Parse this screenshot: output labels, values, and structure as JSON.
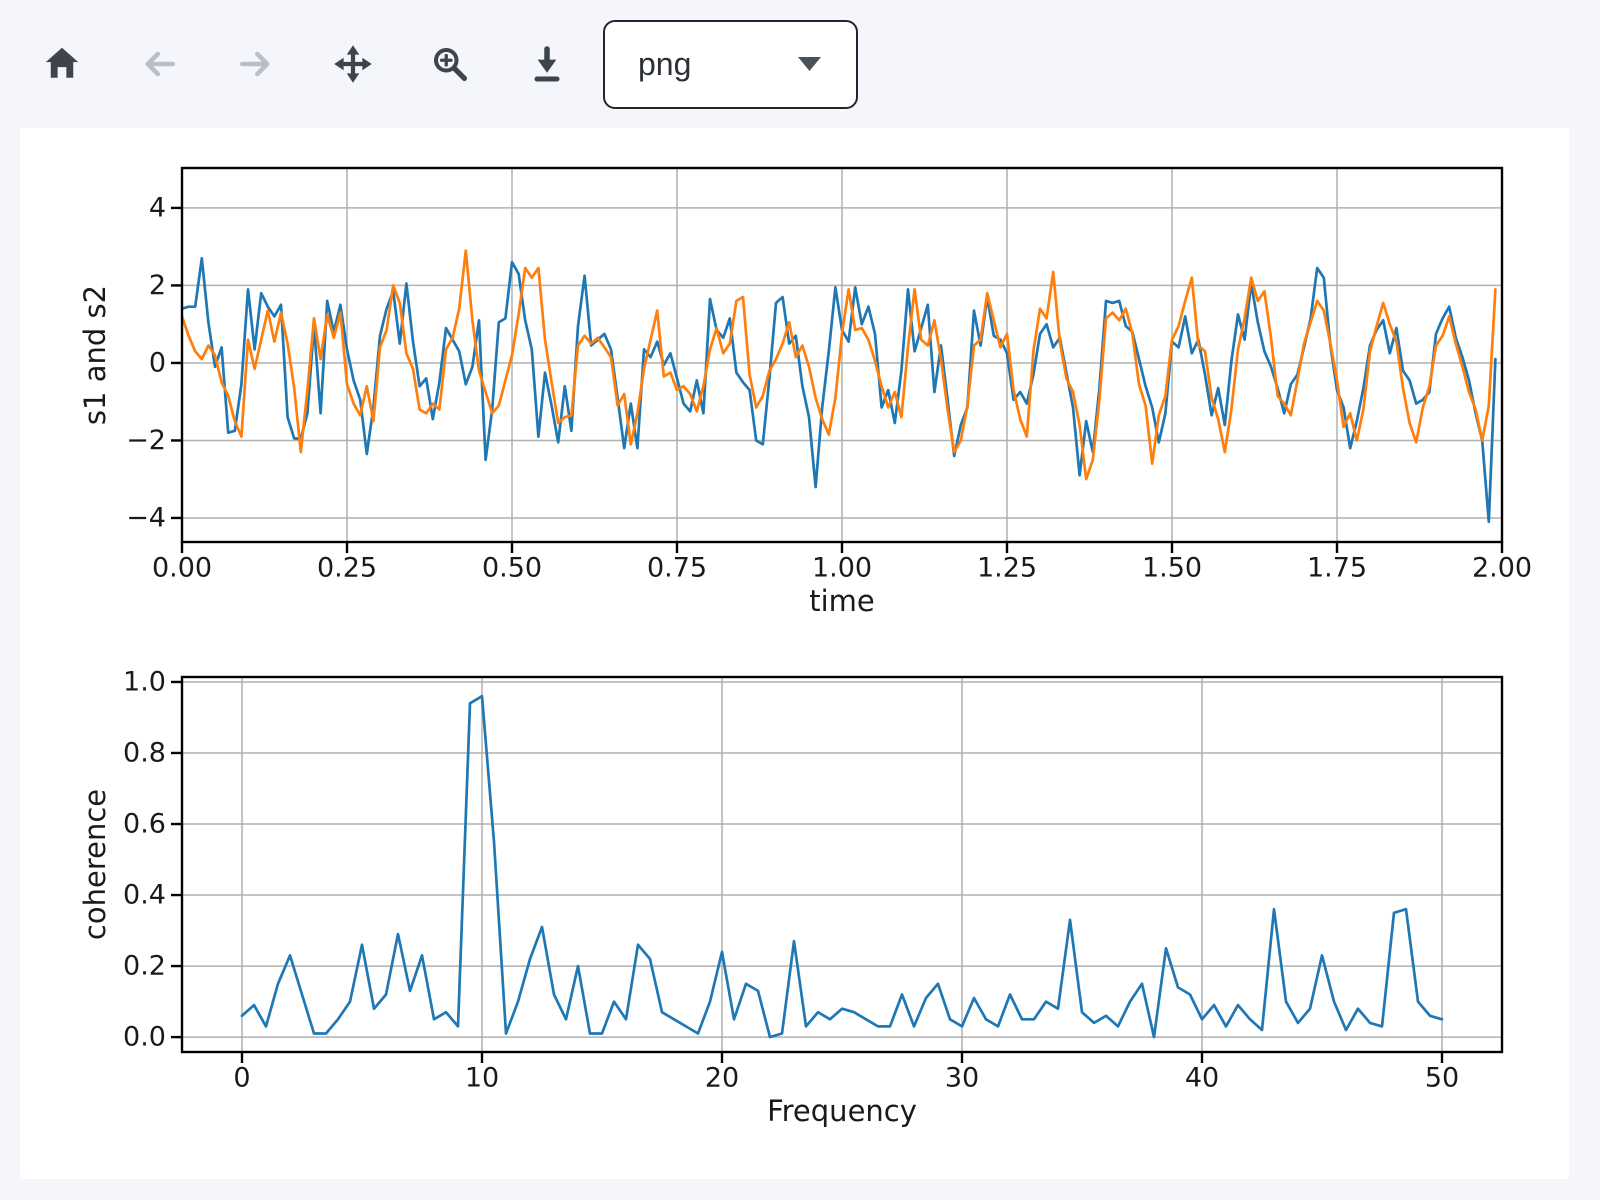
{
  "toolbar": {
    "buttons": [
      {
        "icon": "home-icon",
        "name": "home",
        "enabled": true
      },
      {
        "icon": "back-arrow-icon",
        "name": "back",
        "enabled": false
      },
      {
        "icon": "forward-arrow-icon",
        "name": "forward",
        "enabled": false
      },
      {
        "icon": "pan-move-icon",
        "name": "pan",
        "enabled": true
      },
      {
        "icon": "zoom-magnifier-icon",
        "name": "zoom-to-rect",
        "enabled": true
      },
      {
        "icon": "download-icon",
        "name": "download",
        "enabled": true
      }
    ],
    "format_select": {
      "value": "png"
    }
  },
  "colors": {
    "page_background": "#f4f6fb",
    "figure_background": "#ffffff",
    "grid": "#b0b0b0",
    "spine": "#000000",
    "series_blue": "#1f77b4",
    "series_orange": "#ff7f0e"
  },
  "chart_data": [
    {
      "type": "line",
      "title": "",
      "xlabel": "time",
      "ylabel": "s1 and s2",
      "xlim": [
        0,
        2
      ],
      "ylim": [
        -4.62,
        5.03
      ],
      "grid": true,
      "legend": "none",
      "xticks": {
        "values": [
          0,
          0.25,
          0.5,
          0.75,
          1.0,
          1.25,
          1.5,
          1.75,
          2.0
        ],
        "labels": [
          "0.00",
          "0.25",
          "0.50",
          "0.75",
          "1.00",
          "1.25",
          "1.50",
          "1.75",
          "2.00"
        ]
      },
      "yticks": {
        "values": [
          -4,
          -2,
          0,
          2,
          4
        ],
        "labels": [
          "−4",
          "−2",
          "0",
          "2",
          "4"
        ]
      },
      "x_start": 0,
      "x_step": 0.01,
      "series": [
        {
          "name": "s1",
          "color": "#1f77b4",
          "values": [
            1.4,
            1.45,
            1.45,
            2.7,
            1.05,
            -0.1,
            0.4,
            -1.8,
            -1.75,
            -0.55,
            1.9,
            0.35,
            1.8,
            1.45,
            1.2,
            1.5,
            -1.4,
            -1.95,
            -1.95,
            -1.3,
            0.95,
            -1.3,
            1.6,
            0.8,
            1.5,
            0.35,
            -0.45,
            -0.95,
            -2.35,
            -1.15,
            0.7,
            1.4,
            1.85,
            0.5,
            2.05,
            0.55,
            -0.6,
            -0.4,
            -1.45,
            -0.5,
            0.9,
            0.6,
            0.3,
            -0.55,
            -0.1,
            1.1,
            -2.5,
            -1.2,
            1.05,
            1.15,
            2.6,
            2.3,
            1.1,
            0.35,
            -1.9,
            -0.25,
            -1.1,
            -2.05,
            -0.6,
            -1.75,
            0.95,
            2.25,
            0.45,
            0.6,
            0.75,
            0.35,
            -0.9,
            -2.2,
            -1.05,
            -2.2,
            0.35,
            0.15,
            0.55,
            -0.05,
            0.25,
            -0.4,
            -1.05,
            -1.25,
            -0.45,
            -1.3,
            1.65,
            0.85,
            0.65,
            1.15,
            -0.25,
            -0.5,
            -0.7,
            -2.0,
            -2.1,
            -0.4,
            1.55,
            1.7,
            0.5,
            0.7,
            -0.6,
            -1.4,
            -3.2,
            -1.15,
            0.3,
            1.95,
            0.85,
            0.55,
            1.95,
            1.0,
            1.45,
            0.75,
            -1.15,
            -0.7,
            -1.55,
            -0.2,
            1.9,
            0.3,
            0.9,
            1.5,
            -0.75,
            0.45,
            -0.95,
            -2.4,
            -1.6,
            -1.15,
            1.35,
            0.45,
            1.7,
            0.7,
            0.6,
            0.25,
            -0.95,
            -0.75,
            -1.05,
            -0.3,
            0.75,
            1.0,
            0.4,
            0.65,
            -0.25,
            -1.15,
            -2.9,
            -1.5,
            -2.3,
            -0.65,
            1.6,
            1.55,
            1.6,
            0.95,
            0.8,
            0.1,
            -0.6,
            -1.15,
            -2.05,
            -1.3,
            0.55,
            0.4,
            1.2,
            0.25,
            0.6,
            -0.3,
            -1.35,
            -0.65,
            -1.6,
            0.05,
            1.25,
            0.6,
            2.05,
            1.05,
            0.3,
            -0.1,
            -0.65,
            -1.3,
            -0.55,
            -0.3,
            0.4,
            1.15,
            2.45,
            2.2,
            0.45,
            -0.7,
            -1.15,
            -2.2,
            -1.5,
            -0.65,
            0.45,
            0.85,
            1.1,
            0.25,
            0.9,
            -0.2,
            -0.45,
            -1.05,
            -0.95,
            -0.75,
            0.75,
            1.15,
            1.45,
            0.65,
            0.15,
            -0.45,
            -1.3,
            -2.0,
            -4.1,
            0.1
          ]
        },
        {
          "name": "s2",
          "color": "#ff7f0e",
          "values": [
            1.2,
            0.7,
            0.3,
            0.1,
            0.45,
            0.2,
            -0.5,
            -0.85,
            -1.5,
            -1.9,
            0.6,
            -0.15,
            0.6,
            1.35,
            0.55,
            1.3,
            0.5,
            -0.65,
            -2.3,
            -0.7,
            1.15,
            0.1,
            1.25,
            0.65,
            1.3,
            -0.55,
            -1.05,
            -1.35,
            -0.6,
            -1.5,
            0.4,
            0.85,
            2.0,
            1.55,
            0.25,
            -0.15,
            -1.2,
            -1.3,
            -1.05,
            -1.2,
            0.35,
            0.65,
            1.4,
            2.9,
            1.1,
            -0.2,
            -0.75,
            -1.3,
            -1.1,
            -0.45,
            0.2,
            1.25,
            2.45,
            2.2,
            2.45,
            0.6,
            -0.5,
            -1.55,
            -1.4,
            -1.35,
            0.45,
            0.7,
            0.5,
            0.65,
            0.4,
            0.15,
            -1.1,
            -0.8,
            -2.1,
            -1.3,
            -0.15,
            0.6,
            1.35,
            -0.35,
            -0.25,
            -0.7,
            -0.6,
            -0.8,
            -1.25,
            -0.6,
            0.35,
            0.9,
            0.25,
            0.5,
            1.6,
            1.7,
            -0.3,
            -1.15,
            -0.85,
            -0.2,
            0.1,
            0.5,
            1.05,
            0.15,
            0.45,
            -0.1,
            -0.9,
            -1.45,
            -1.85,
            -0.9,
            0.75,
            1.9,
            0.85,
            0.9,
            0.6,
            0.05,
            -0.6,
            -1.15,
            -0.75,
            -1.4,
            0.4,
            1.9,
            0.6,
            0.45,
            1.1,
            0.1,
            -1.2,
            -2.3,
            -2.0,
            -1.1,
            0.45,
            0.6,
            1.8,
            1.1,
            0.4,
            0.75,
            -0.7,
            -1.45,
            -1.9,
            0.3,
            1.4,
            1.15,
            2.35,
            0.55,
            -0.4,
            -0.75,
            -1.6,
            -3.0,
            -2.5,
            -0.95,
            1.15,
            1.3,
            1.1,
            1.4,
            0.75,
            -0.55,
            -1.1,
            -2.6,
            -1.35,
            -0.85,
            0.6,
            0.95,
            1.6,
            2.2,
            0.45,
            0.3,
            -0.9,
            -1.45,
            -2.3,
            -1.2,
            0.35,
            1.15,
            2.2,
            1.6,
            1.85,
            0.65,
            -0.85,
            -1.05,
            -1.35,
            -0.45,
            0.5,
            1.05,
            1.6,
            1.35,
            0.5,
            -0.45,
            -1.65,
            -1.3,
            -2.0,
            -1.2,
            0.3,
            0.95,
            1.55,
            1.0,
            0.55,
            -0.65,
            -1.55,
            -2.05,
            -1.15,
            -0.6,
            0.45,
            0.7,
            1.2,
            0.5,
            -0.1,
            -0.75,
            -1.2,
            -2.0,
            -1.1,
            1.9
          ]
        }
      ]
    },
    {
      "type": "line",
      "title": "",
      "xlabel": "Frequency",
      "ylabel": "coherence",
      "xlim": [
        -2.5,
        52.5
      ],
      "ylim": [
        -0.042,
        1.014
      ],
      "grid": true,
      "legend": "none",
      "xticks": {
        "values": [
          0,
          10,
          20,
          30,
          40,
          50
        ],
        "labels": [
          "0",
          "10",
          "20",
          "30",
          "40",
          "50"
        ]
      },
      "yticks": {
        "values": [
          0.0,
          0.2,
          0.4,
          0.6,
          0.8,
          1.0
        ],
        "labels": [
          "0.0",
          "0.2",
          "0.4",
          "0.6",
          "0.8",
          "1.0"
        ]
      },
      "x_start": 0,
      "x_step": 0.5,
      "series": [
        {
          "name": "coherence",
          "color": "#1f77b4",
          "values": [
            0.06,
            0.09,
            0.03,
            0.15,
            0.23,
            0.12,
            0.01,
            0.01,
            0.05,
            0.1,
            0.26,
            0.08,
            0.12,
            0.29,
            0.13,
            0.23,
            0.05,
            0.07,
            0.03,
            0.94,
            0.96,
            0.55,
            0.01,
            0.1,
            0.22,
            0.31,
            0.12,
            0.05,
            0.2,
            0.01,
            0.01,
            0.1,
            0.05,
            0.26,
            0.22,
            0.07,
            0.05,
            0.03,
            0.01,
            0.1,
            0.24,
            0.05,
            0.15,
            0.13,
            0.0,
            0.01,
            0.27,
            0.03,
            0.07,
            0.05,
            0.08,
            0.07,
            0.05,
            0.03,
            0.03,
            0.12,
            0.03,
            0.11,
            0.15,
            0.05,
            0.03,
            0.11,
            0.05,
            0.03,
            0.12,
            0.05,
            0.05,
            0.1,
            0.08,
            0.33,
            0.07,
            0.04,
            0.06,
            0.03,
            0.1,
            0.15,
            0.0,
            0.25,
            0.14,
            0.12,
            0.05,
            0.09,
            0.03,
            0.09,
            0.05,
            0.02,
            0.36,
            0.1,
            0.04,
            0.08,
            0.23,
            0.1,
            0.02,
            0.08,
            0.04,
            0.03,
            0.35,
            0.36,
            0.1,
            0.06,
            0.05
          ]
        }
      ]
    }
  ]
}
